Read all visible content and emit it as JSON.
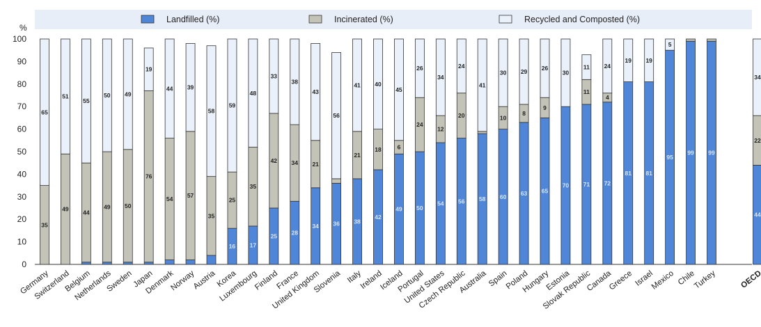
{
  "chart_data": {
    "type": "bar",
    "stacked": true,
    "y_unit_label": "%",
    "ylim": [
      0,
      100
    ],
    "yticks": [
      0,
      10,
      20,
      30,
      40,
      50,
      60,
      70,
      80,
      90,
      100
    ],
    "grid": false,
    "legend_position": "top",
    "categories": [
      "Germany",
      "Switzerland",
      "Belgium",
      "Netherlands",
      "Sweden",
      "Japan",
      "Denmark",
      "Norway",
      "Austria",
      "Korea",
      "Luxembourg",
      "Finland",
      "France",
      "United Kingdom",
      "Slovenia",
      "Italy",
      "Ireland",
      "Iceland",
      "Portugal",
      "United States",
      "Czech Republic",
      "Australia",
      "Spain",
      "Poland",
      "Hungary",
      "Estonia",
      "Slovak Republic",
      "Canada",
      "Greece",
      "Israel",
      "Mexico",
      "Chile",
      "Turkey",
      "OECD"
    ],
    "bold_categories": [
      "OECD"
    ],
    "series": [
      {
        "name": "Landfilled (%)",
        "color": "#4f86d8",
        "label_color": "#d8e6f8",
        "values": [
          0,
          0,
          1,
          1,
          1,
          1,
          2,
          2,
          4,
          16,
          17,
          25,
          28,
          34,
          36,
          38,
          42,
          49,
          50,
          54,
          56,
          58,
          60,
          63,
          65,
          70,
          71,
          72,
          81,
          81,
          95,
          99,
          99,
          44
        ],
        "labels": [
          "",
          "",
          "",
          "",
          "",
          "",
          "",
          "",
          "",
          "16",
          "17",
          "25",
          "28",
          "34",
          "36",
          "38",
          "42",
          "49",
          "50",
          "54",
          "56",
          "58",
          "60",
          "63",
          "65",
          "70",
          "71",
          "72",
          "81",
          "81",
          "95",
          "99",
          "99",
          "44"
        ]
      },
      {
        "name": "Incinerated (%)",
        "color": "#c3c3b8",
        "label_color": "#222222",
        "values": [
          35,
          49,
          44,
          49,
          50,
          76,
          54,
          57,
          35,
          25,
          35,
          42,
          34,
          21,
          2,
          21,
          18,
          6,
          24,
          12,
          20,
          1,
          10,
          8,
          9,
          0,
          11,
          4,
          0,
          0,
          0,
          1,
          1,
          22
        ],
        "labels": [
          "35",
          "49",
          "44",
          "49",
          "50",
          "76",
          "54",
          "57",
          "35",
          "25",
          "35",
          "42",
          "34",
          "21",
          "",
          "21",
          "18",
          "6",
          "24",
          "12",
          "20",
          "",
          "10",
          "8",
          "9",
          "",
          "11",
          "4",
          "",
          "",
          "",
          "",
          "",
          "22"
        ]
      },
      {
        "name": "Recycled and Composted (%)",
        "color": "#eaf1fa",
        "label_color": "#222222",
        "values": [
          65,
          51,
          55,
          50,
          49,
          19,
          44,
          39,
          58,
          59,
          48,
          33,
          38,
          43,
          56,
          41,
          40,
          45,
          26,
          34,
          24,
          41,
          30,
          29,
          26,
          30,
          11,
          24,
          19,
          19,
          5,
          0,
          0,
          34
        ],
        "labels": [
          "65",
          "51",
          "55",
          "50",
          "49",
          "19",
          "44",
          "39",
          "58",
          "59",
          "48",
          "33",
          "38",
          "43",
          "56",
          "41",
          "40",
          "45",
          "26",
          "34",
          "24",
          "41",
          "30",
          "29",
          "26",
          "30",
          "11",
          "24",
          "19",
          "19",
          "5",
          "",
          "",
          "34"
        ]
      }
    ]
  }
}
